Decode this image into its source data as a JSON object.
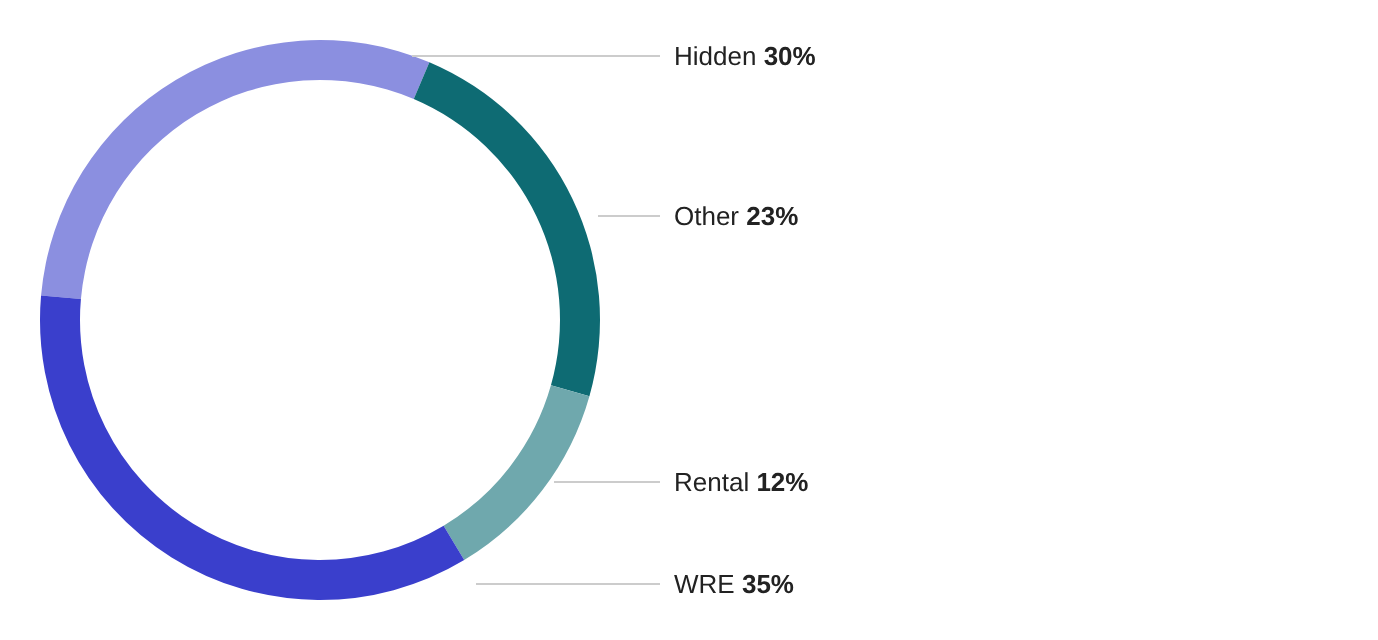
{
  "chart_data": {
    "type": "donut",
    "categories": [
      "Hidden",
      "Other",
      "Rental",
      "WRE"
    ],
    "values": [
      30,
      23,
      12,
      35
    ],
    "colors": [
      "#8b8fe0",
      "#0e6b73",
      "#6fa8ad",
      "#3a3fcc"
    ],
    "value_labels": [
      "30%",
      "23%",
      "12%",
      "35%"
    ]
  }
}
